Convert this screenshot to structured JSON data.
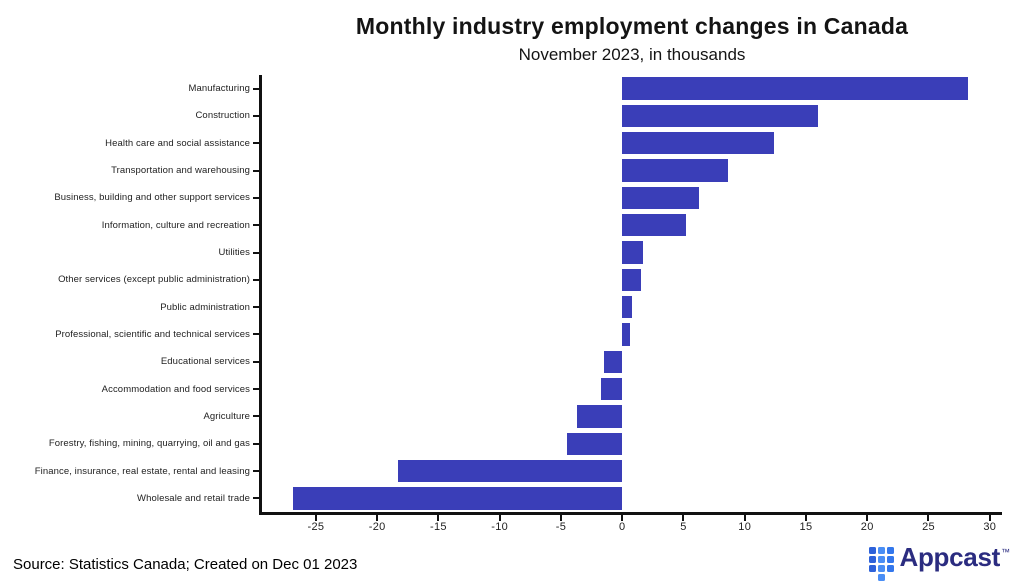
{
  "header": {
    "title": "Monthly industry employment changes in Canada",
    "subtitle": "November 2023, in thousands"
  },
  "chart_data": {
    "type": "bar",
    "orientation": "horizontal",
    "title": "Monthly industry employment changes in Canada",
    "subtitle": "November 2023, in thousands",
    "value_unit": "thousands",
    "categories": [
      "Manufacturing",
      "Construction",
      "Health care and social assistance",
      "Transportation and warehousing",
      "Business, building and other support services",
      "Information, culture and recreation",
      "Utilities",
      "Other services (except public administration)",
      "Public administration",
      "Professional, scientific and technical services",
      "Educational services",
      "Accommodation and food services",
      "Agriculture",
      "Forestry, fishing, mining, quarrying, oil and gas",
      "Finance, insurance, real estate, rental and leasing",
      "Wholesale and retail trade"
    ],
    "values": [
      28.2,
      16.0,
      12.4,
      8.6,
      6.3,
      5.2,
      1.7,
      1.5,
      0.8,
      0.6,
      -1.5,
      -1.7,
      -3.7,
      -4.5,
      -18.3,
      -26.9
    ],
    "xlim": [
      -29.4,
      31.0
    ],
    "xticks": [
      -25,
      -20,
      -15,
      -10,
      -5,
      0,
      5,
      10,
      15,
      20,
      25,
      30
    ],
    "bar_color": "#3a3eb8",
    "axis_color": "#111111",
    "grid": false,
    "legend": null
  },
  "footer": {
    "source_text": "Source: Statistics Canada; Created on Dec 01 2023"
  },
  "logo": {
    "brand": "Appcast",
    "trademark": "™",
    "text_color": "#2b2c80",
    "square_colors": [
      "#2e62da",
      "#4a8ef5",
      "#3377ec"
    ],
    "grid_pattern": [
      3,
      4,
      3
    ]
  }
}
